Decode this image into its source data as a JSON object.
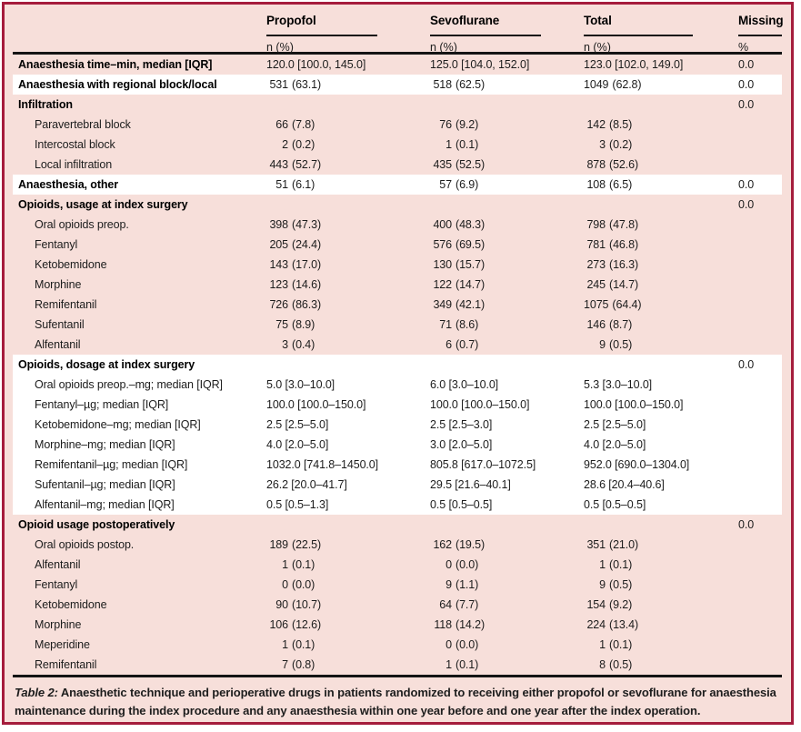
{
  "colors": {
    "frame": "#a51c3c",
    "band_pink": "#f7dfda",
    "band_white": "#ffffff",
    "rule": "#141414",
    "text": "#1c1c1c"
  },
  "table": {
    "columns": [
      {
        "label": "Propofol",
        "sub": "n (%)"
      },
      {
        "label": "Sevoflurane",
        "sub": "n (%)"
      },
      {
        "label": "Total",
        "sub": "n (%)"
      },
      {
        "label": "Missing",
        "sub": "%"
      }
    ],
    "rows": [
      {
        "label": "Anaesthesia time–min, median [IQR]",
        "bold": true,
        "indent": false,
        "band": "pink",
        "type": "median",
        "propofol": "120.0 [100.0, 145.0]",
        "sevoflurane": "125.0 [104.0, 152.0]",
        "total": "123.0 [102.0, 149.0]",
        "missing": "0.0"
      },
      {
        "label": "Anaesthesia with regional block/local",
        "bold": true,
        "indent": false,
        "band": "white",
        "type": "count",
        "propofol": "531 (63.1)",
        "sevoflurane": "518 (62.5)",
        "total": "1049 (62.8)",
        "missing": "0.0"
      },
      {
        "label": "Infiltration",
        "bold": true,
        "indent": false,
        "band": "pink",
        "type": "count",
        "propofol": "",
        "sevoflurane": "",
        "total": "",
        "missing": "0.0"
      },
      {
        "label": "Paravertebral block",
        "bold": false,
        "indent": true,
        "band": "pink",
        "type": "count",
        "propofol": "66 (7.8)",
        "sevoflurane": "76 (9.2)",
        "total": "142 (8.5)",
        "missing": ""
      },
      {
        "label": "Intercostal block",
        "bold": false,
        "indent": true,
        "band": "pink",
        "type": "count",
        "propofol": "2 (0.2)",
        "sevoflurane": "1 (0.1)",
        "total": "3 (0.2)",
        "missing": ""
      },
      {
        "label": "Local infiltration",
        "bold": false,
        "indent": true,
        "band": "pink",
        "type": "count",
        "propofol": "443 (52.7)",
        "sevoflurane": "435 (52.5)",
        "total": "878 (52.6)",
        "missing": ""
      },
      {
        "label": "Anaesthesia, other",
        "bold": true,
        "indent": false,
        "band": "white",
        "type": "count",
        "propofol": "51 (6.1)",
        "sevoflurane": "57 (6.9)",
        "total": "108 (6.5)",
        "missing": "0.0"
      },
      {
        "label": "Opioids, usage at index surgery",
        "bold": true,
        "indent": false,
        "band": "pink",
        "type": "count",
        "propofol": "",
        "sevoflurane": "",
        "total": "",
        "missing": "0.0"
      },
      {
        "label": "Oral opioids preop.",
        "bold": false,
        "indent": true,
        "band": "pink",
        "type": "count",
        "propofol": "398 (47.3)",
        "sevoflurane": "400 (48.3)",
        "total": "798 (47.8)",
        "missing": ""
      },
      {
        "label": "Fentanyl",
        "bold": false,
        "indent": true,
        "band": "pink",
        "type": "count",
        "propofol": "205 (24.4)",
        "sevoflurane": "576 (69.5)",
        "total": "781 (46.8)",
        "missing": ""
      },
      {
        "label": "Ketobemidone",
        "bold": false,
        "indent": true,
        "band": "pink",
        "type": "count",
        "propofol": "143 (17.0)",
        "sevoflurane": "130 (15.7)",
        "total": "273 (16.3)",
        "missing": ""
      },
      {
        "label": "Morphine",
        "bold": false,
        "indent": true,
        "band": "pink",
        "type": "count",
        "propofol": "123 (14.6)",
        "sevoflurane": "122 (14.7)",
        "total": "245 (14.7)",
        "missing": ""
      },
      {
        "label": "Remifentanil",
        "bold": false,
        "indent": true,
        "band": "pink",
        "type": "count",
        "propofol": "726 (86.3)",
        "sevoflurane": "349 (42.1)",
        "total": "1075 (64.4)",
        "missing": ""
      },
      {
        "label": "Sufentanil",
        "bold": false,
        "indent": true,
        "band": "pink",
        "type": "count",
        "propofol": "75 (8.9)",
        "sevoflurane": "71 (8.6)",
        "total": "146 (8.7)",
        "missing": ""
      },
      {
        "label": "Alfentanil",
        "bold": false,
        "indent": true,
        "band": "pink",
        "type": "count",
        "propofol": "3 (0.4)",
        "sevoflurane": "6 (0.7)",
        "total": "9 (0.5)",
        "missing": ""
      },
      {
        "label": "Opioids, dosage at index surgery",
        "bold": true,
        "indent": false,
        "band": "white",
        "type": "count",
        "propofol": "",
        "sevoflurane": "",
        "total": "",
        "missing": "0.0"
      },
      {
        "label": "Oral opioids preop.–mg; median [IQR]",
        "bold": false,
        "indent": true,
        "band": "white",
        "type": "median",
        "propofol": "5.0 [3.0–10.0]",
        "sevoflurane": "6.0 [3.0–10.0]",
        "total": "5.3 [3.0–10.0]",
        "missing": ""
      },
      {
        "label": "Fentanyl–µg; median [IQR]",
        "bold": false,
        "indent": true,
        "band": "white",
        "type": "median",
        "propofol": "100.0 [100.0–150.0]",
        "sevoflurane": "100.0 [100.0–150.0]",
        "total": "100.0 [100.0–150.0]",
        "missing": ""
      },
      {
        "label": "Ketobemidone–mg; median [IQR]",
        "bold": false,
        "indent": true,
        "band": "white",
        "type": "median",
        "propofol": "2.5 [2.5–5.0]",
        "sevoflurane": "2.5 [2.5–3.0]",
        "total": "2.5 [2.5–5.0]",
        "missing": ""
      },
      {
        "label": "Morphine–mg; median [IQR]",
        "bold": false,
        "indent": true,
        "band": "white",
        "type": "median",
        "propofol": "4.0 [2.0–5.0]",
        "sevoflurane": "3.0 [2.0–5.0]",
        "total": "4.0 [2.0–5.0]",
        "missing": ""
      },
      {
        "label": "Remifentanil–µg; median [IQR]",
        "bold": false,
        "indent": true,
        "band": "white",
        "type": "median",
        "propofol": "1032.0 [741.8–1450.0]",
        "sevoflurane": "805.8 [617.0–1072.5]",
        "total": "952.0 [690.0–1304.0]",
        "missing": ""
      },
      {
        "label": "Sufentanil–µg; median [IQR]",
        "bold": false,
        "indent": true,
        "band": "white",
        "type": "median",
        "propofol": "26.2 [20.0–41.7]",
        "sevoflurane": "29.5 [21.6–40.1]",
        "total": "28.6 [20.4–40.6]",
        "missing": ""
      },
      {
        "label": "Alfentanil–mg; median [IQR]",
        "bold": false,
        "indent": true,
        "band": "white",
        "type": "median",
        "propofol": "0.5 [0.5–1.3]",
        "sevoflurane": "0.5 [0.5–0.5]",
        "total": "0.5 [0.5–0.5]",
        "missing": ""
      },
      {
        "label": "Opioid usage postoperatively",
        "bold": true,
        "indent": false,
        "band": "pink",
        "type": "count",
        "propofol": "",
        "sevoflurane": "",
        "total": "",
        "missing": "0.0"
      },
      {
        "label": "Oral opioids postop.",
        "bold": false,
        "indent": true,
        "band": "pink",
        "type": "count",
        "propofol": "189 (22.5)",
        "sevoflurane": "162 (19.5)",
        "total": "351 (21.0)",
        "missing": ""
      },
      {
        "label": "Alfentanil",
        "bold": false,
        "indent": true,
        "band": "pink",
        "type": "count",
        "propofol": "1 (0.1)",
        "sevoflurane": "0 (0.0)",
        "total": "1 (0.1)",
        "missing": ""
      },
      {
        "label": "Fentanyl",
        "bold": false,
        "indent": true,
        "band": "pink",
        "type": "count",
        "propofol": "0 (0.0)",
        "sevoflurane": "9 (1.1)",
        "total": "9 (0.5)",
        "missing": ""
      },
      {
        "label": "Ketobemidone",
        "bold": false,
        "indent": true,
        "band": "pink",
        "type": "count",
        "propofol": "90 (10.7)",
        "sevoflurane": "64 (7.7)",
        "total": "154 (9.2)",
        "missing": ""
      },
      {
        "label": "Morphine",
        "bold": false,
        "indent": true,
        "band": "pink",
        "type": "count",
        "propofol": "106 (12.6)",
        "sevoflurane": "118 (14.2)",
        "total": "224 (13.4)",
        "missing": ""
      },
      {
        "label": "Meperidine",
        "bold": false,
        "indent": true,
        "band": "pink",
        "type": "count",
        "propofol": "1 (0.1)",
        "sevoflurane": "0 (0.0)",
        "total": "1 (0.1)",
        "missing": ""
      },
      {
        "label": "Remifentanil",
        "bold": false,
        "indent": true,
        "band": "pink",
        "type": "count",
        "propofol": "7 (0.8)",
        "sevoflurane": "1 (0.1)",
        "total": "8 (0.5)",
        "missing": ""
      }
    ],
    "caption": {
      "prefix": "Table 2:",
      "text": "Anaesthetic technique and perioperative drugs in patients randomized to receiving either propofol or sevoflurane for anaesthesia maintenance during the index procedure and any anaesthesia within one year before and one year after the index operation."
    }
  }
}
